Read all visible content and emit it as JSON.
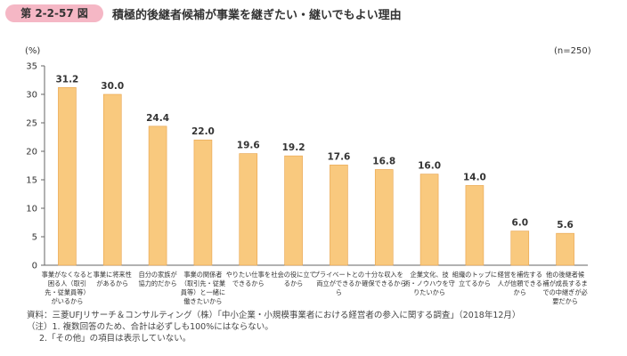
{
  "figure": {
    "number": "第 2-2-57 図",
    "title": "積極的後継者候補が事業を継ぎたい・継いでもよい理由"
  },
  "chart_data": {
    "type": "bar",
    "ylabel": "(%)",
    "ylim": [
      0,
      35
    ],
    "yticks": [
      0,
      5,
      10,
      15,
      20,
      25,
      30,
      35
    ],
    "sample_note": "(n=250)",
    "color": "#f9c97e",
    "edge_color": "#e8a24a",
    "categories": [
      [
        "事業がなくなると",
        "困る人（取引",
        "先・従業員等）",
        "がいるから"
      ],
      [
        "事業に将来性",
        "があるから"
      ],
      [
        "自分の家族が",
        "協力的だから"
      ],
      [
        "事業の関係者",
        "（取引先・従業",
        "員等）と一緒に",
        "働きたいから"
      ],
      [
        "やりたい仕事を",
        "できるから"
      ],
      [
        "社会の役に立て",
        "るから"
      ],
      [
        "プライベートとの",
        "両立ができるか",
        "ら"
      ],
      [
        "十分な収入を",
        "確保できるから"
      ],
      [
        "企業文化、技",
        "術・ノウハウを守",
        "りたいから"
      ],
      [
        "組織のトップに",
        "立てるから"
      ],
      [
        "経営を補佐する",
        "人が信頼できる",
        "から"
      ],
      [
        "他の後継者候",
        "補が成長するま",
        "での中継ぎが必",
        "要だから"
      ]
    ],
    "values": [
      31.2,
      30.0,
      24.4,
      22.0,
      19.6,
      19.2,
      17.6,
      16.8,
      16.0,
      14.0,
      6.0,
      5.6
    ],
    "value_labels": [
      "31.2",
      "30.0",
      "24.4",
      "22.0",
      "19.6",
      "19.2",
      "17.6",
      "16.8",
      "16.0",
      "14.0",
      "6.0",
      "5.6"
    ]
  },
  "notes": {
    "source": "資料：三菱UFJリサーチ＆コンサルティング（株）「中小企業・小規模事業者における経営者の参入に関する調査」（2018年12月）",
    "note1": "（注）1. 複数回答のため、合計は必ずしも100%にはならない。",
    "note2": "2.「その他」の項目は表示していない。"
  }
}
